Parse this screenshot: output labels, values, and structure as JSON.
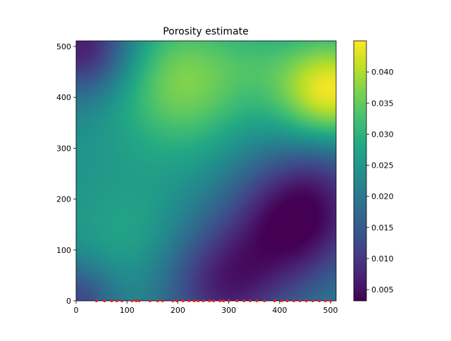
{
  "chart_data": {
    "type": "heatmap",
    "title": "Porosity estimate",
    "xlabel": "",
    "ylabel": "",
    "xlim": [
      0,
      511
    ],
    "ylim": [
      0,
      511
    ],
    "x_ticks": [
      0,
      100,
      200,
      300,
      400,
      500
    ],
    "y_ticks": [
      0,
      100,
      200,
      300,
      400,
      500
    ],
    "colormap": "viridis",
    "colorbar": {
      "range": [
        0.0032,
        0.045
      ],
      "ticks": [
        "0.005",
        "0.010",
        "0.015",
        "0.020",
        "0.025",
        "0.030",
        "0.035",
        "0.040"
      ],
      "tick_values": [
        0.005,
        0.01,
        0.015,
        0.02,
        0.025,
        0.03,
        0.035,
        0.04
      ]
    },
    "field_description": "smooth 2D porosity field; highs near (500,410) and (210,420), lows near (440,170), (20,490), (280,40)",
    "field_anchors": [
      {
        "x": 500,
        "y": 410,
        "value": 0.045
      },
      {
        "x": 210,
        "y": 420,
        "value": 0.038
      },
      {
        "x": 440,
        "y": 170,
        "value": 0.0035
      },
      {
        "x": 20,
        "y": 490,
        "value": 0.006
      },
      {
        "x": 280,
        "y": 40,
        "value": 0.007
      },
      {
        "x": 120,
        "y": 130,
        "value": 0.026
      },
      {
        "x": 300,
        "y": 300,
        "value": 0.024
      }
    ],
    "sample_points": {
      "color": "#d62728",
      "y": 0,
      "x": [
        40,
        56,
        70,
        80,
        90,
        110,
        118,
        124,
        145,
        160,
        170,
        190,
        198,
        210,
        222,
        232,
        240,
        250,
        262,
        270,
        283,
        290,
        300,
        316,
        330,
        342,
        355,
        370,
        390,
        404,
        415,
        428,
        440,
        452,
        465,
        478,
        490,
        500
      ]
    }
  }
}
